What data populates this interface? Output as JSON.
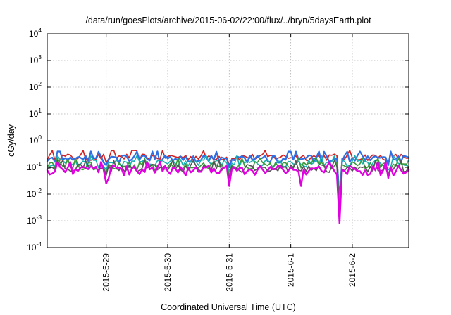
{
  "chart_data": {
    "type": "line",
    "title": "/data/run/goesPlots/archive/2015-06-02/22:00/flux/../bryn/5daysEarth.plot",
    "xlabel": "Coordinated Universal Time (UTC)",
    "ylabel": "cGy/day",
    "yscale": "log",
    "ylim": [
      0.0001,
      10000
    ],
    "y_ticks": [
      {
        "base": "10",
        "exp": "-4",
        "value": 0.0001
      },
      {
        "base": "10",
        "exp": "-3",
        "value": 0.001
      },
      {
        "base": "10",
        "exp": "-2",
        "value": 0.01
      },
      {
        "base": "10",
        "exp": "-1",
        "value": 0.1
      },
      {
        "base": "10",
        "exp": "0",
        "value": 1
      },
      {
        "base": "10",
        "exp": "1",
        "value": 10
      },
      {
        "base": "10",
        "exp": "2",
        "value": 100
      },
      {
        "base": "10",
        "exp": "3",
        "value": 1000
      },
      {
        "base": "10",
        "exp": "4",
        "value": 10000
      }
    ],
    "xlim": [
      "2015-05-28T01:00",
      "2015-06-02T22:00"
    ],
    "x_ticks": [
      {
        "label": "2015-5-29",
        "date": "2015-05-29T00:00"
      },
      {
        "label": "2015-5-30",
        "date": "2015-05-30T00:00"
      },
      {
        "label": "2015-5-31",
        "date": "2015-05-31T00:00"
      },
      {
        "label": "2015-6-1",
        "date": "2015-06-01T00:00"
      },
      {
        "label": "2015-6-2",
        "date": "2015-06-02T00:00"
      }
    ],
    "grid": true,
    "legend": "none",
    "series": [
      {
        "color": "#d42020",
        "base": 0.25,
        "noise": 0.08,
        "dips": [
          {
            "date": "2015-05-29T00:00",
            "value": 0.15
          },
          {
            "date": "2015-05-31T00:00",
            "value": 0.12
          },
          {
            "date": "2015-06-01T19:00",
            "value": 0.008
          },
          {
            "date": "2015-06-02T14:00",
            "value": 0.14
          }
        ]
      },
      {
        "color": "#2f6fe4",
        "base": 0.22,
        "noise": 0.08,
        "dips": [
          {
            "date": "2015-05-29T00:00",
            "value": 0.12
          },
          {
            "date": "2015-05-31T00:00",
            "value": 0.1
          },
          {
            "date": "2015-06-01T19:00",
            "value": 0.006
          },
          {
            "date": "2015-06-02T14:00",
            "value": 0.12
          }
        ]
      },
      {
        "color": "#1ab0b0",
        "base": 0.15,
        "noise": 0.06,
        "dips": [
          {
            "date": "2015-05-29T00:00",
            "value": 0.08
          },
          {
            "date": "2015-05-31T00:00",
            "value": 0.07
          },
          {
            "date": "2015-06-01T19:00",
            "value": 0.004
          },
          {
            "date": "2015-06-02T14:00",
            "value": 0.08
          }
        ]
      },
      {
        "color": "#3a9a3a",
        "base": 0.12,
        "noise": 0.05,
        "dips": [
          {
            "date": "2015-05-29T00:00",
            "value": 0.06
          },
          {
            "date": "2015-05-31T00:00",
            "value": 0.05
          },
          {
            "date": "2015-06-01T19:00",
            "value": 0.003
          },
          {
            "date": "2015-06-02T14:00",
            "value": 0.06
          }
        ]
      },
      {
        "color": "#555555",
        "base": 0.1,
        "noise": 0.04,
        "dips": [
          {
            "date": "2015-05-29T00:00",
            "value": 0.05
          },
          {
            "date": "2015-05-31T00:00",
            "value": 0.04
          },
          {
            "date": "2015-06-01T19:00",
            "value": 0.002
          },
          {
            "date": "2015-06-02T14:00",
            "value": 0.05
          }
        ]
      },
      {
        "color": "#e000e0",
        "base": 0.085,
        "noise": 0.04,
        "dips": [
          {
            "date": "2015-05-29T00:00",
            "value": 0.025
          },
          {
            "date": "2015-05-29T01:00",
            "value": 0.04
          },
          {
            "date": "2015-05-31T00:00",
            "value": 0.02
          },
          {
            "date": "2015-06-01T04:00",
            "value": 0.02
          },
          {
            "date": "2015-06-01T19:00",
            "value": 0.0008
          },
          {
            "date": "2015-06-02T14:00",
            "value": 0.04
          }
        ]
      }
    ]
  }
}
